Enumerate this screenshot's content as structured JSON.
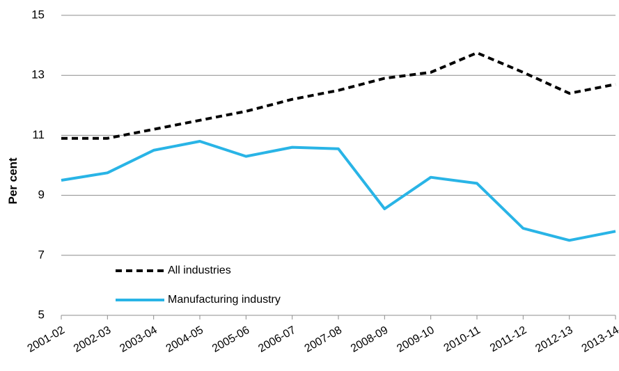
{
  "chart_data": {
    "type": "line",
    "title": "",
    "xlabel": "",
    "ylabel": "Per cent",
    "ylim": [
      5,
      15
    ],
    "yticks": [
      5,
      7,
      9,
      11,
      13,
      15
    ],
    "grid": "horizontal",
    "legend_position": "bottom-left",
    "categories": [
      "2001-02",
      "2002-03",
      "2003-04",
      "2004-05",
      "2005-06",
      "2006-07",
      "2007-08",
      "2008-09",
      "2009-10",
      "2010-11",
      "2011-12",
      "2012-13",
      "2013-14"
    ],
    "series": [
      {
        "name": "All industries",
        "color": "#000000",
        "style": "dashed",
        "values": [
          10.9,
          10.9,
          11.2,
          11.5,
          11.8,
          12.2,
          12.5,
          12.9,
          13.1,
          13.75,
          13.1,
          12.4,
          12.7
        ]
      },
      {
        "name": "Manufacturing industry",
        "color": "#29b4e6",
        "style": "solid",
        "values": [
          9.5,
          9.75,
          10.5,
          10.8,
          10.3,
          10.6,
          10.55,
          8.55,
          9.6,
          9.4,
          7.9,
          7.5,
          7.8
        ]
      }
    ]
  }
}
